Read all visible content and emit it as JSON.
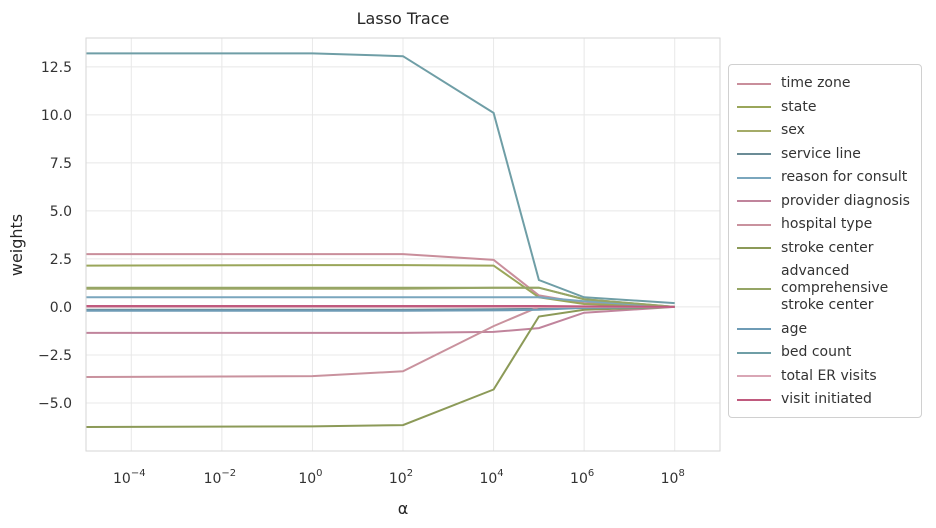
{
  "chart_data": {
    "type": "line",
    "title": "Lasso Trace",
    "xlabel": "α",
    "ylabel": "weights",
    "xscale": "log",
    "xlim": [
      1e-05,
      1000000000
    ],
    "ylim": [
      -7.5,
      14.0
    ],
    "x": [
      1e-05,
      1,
      100,
      10000,
      100000,
      1000000,
      100000000
    ],
    "xtick_labels": [
      "10",
      "10",
      "10",
      "10",
      "10",
      "10",
      "10"
    ],
    "xtick_exponents": [
      "−4",
      "−2",
      "0",
      "2",
      "4",
      "6",
      "8"
    ],
    "ytick_labels": [
      "−5.0",
      "−2.5",
      "0.0",
      "2.5",
      "5.0",
      "7.5",
      "10.0",
      "12.5"
    ],
    "grid": true,
    "legend_position": "right",
    "series": [
      {
        "name": "time zone",
        "color": "#c98e9b",
        "values": [
          2.75,
          2.75,
          2.75,
          2.45,
          0.6,
          0.2,
          0.0
        ]
      },
      {
        "name": "state",
        "color": "#9aa65a",
        "values": [
          2.15,
          2.18,
          2.18,
          2.15,
          0.5,
          0.15,
          0.0
        ]
      },
      {
        "name": "sex",
        "color": "#a4ab68",
        "values": [
          0.95,
          0.95,
          0.95,
          1.0,
          1.0,
          0.4,
          0.0
        ]
      },
      {
        "name": "service line",
        "color": "#6b8c96",
        "values": [
          -0.15,
          -0.15,
          -0.15,
          -0.12,
          -0.1,
          -0.05,
          0.0
        ]
      },
      {
        "name": "reason for consult",
        "color": "#7aa6bd",
        "values": [
          0.5,
          0.5,
          0.5,
          0.5,
          0.5,
          0.3,
          0.0
        ]
      },
      {
        "name": "provider diagnosis",
        "color": "#c0849c",
        "values": [
          -1.35,
          -1.35,
          -1.35,
          -1.3,
          -1.1,
          -0.3,
          0.0
        ]
      },
      {
        "name": "hospital type",
        "color": "#c9929e",
        "values": [
          -3.65,
          -3.6,
          -3.35,
          -1.0,
          0.0,
          0.0,
          0.0
        ]
      },
      {
        "name": "stroke center",
        "color": "#8c9a58",
        "values": [
          -6.25,
          -6.22,
          -6.15,
          -4.3,
          -0.5,
          -0.15,
          0.0
        ]
      },
      {
        "name": "advanced\ncomprehensive\nstroke center",
        "color": "#95a565",
        "values": [
          1.0,
          1.0,
          1.0,
          1.0,
          1.0,
          0.4,
          0.0
        ]
      },
      {
        "name": "age",
        "color": "#6e9bb5",
        "values": [
          -0.2,
          -0.2,
          -0.2,
          -0.18,
          -0.15,
          -0.05,
          0.0
        ]
      },
      {
        "name": "bed count",
        "color": "#6f9ea6",
        "values": [
          13.2,
          13.2,
          13.05,
          10.1,
          1.4,
          0.5,
          0.2
        ]
      },
      {
        "name": "total ER visits",
        "color": "#d9a6b5",
        "values": [
          0.0,
          0.0,
          0.0,
          0.0,
          0.0,
          0.0,
          0.0
        ]
      },
      {
        "name": "visit initiated",
        "color": "#c05a7e",
        "values": [
          0.05,
          0.05,
          0.05,
          0.05,
          0.05,
          0.03,
          0.0
        ]
      }
    ]
  }
}
